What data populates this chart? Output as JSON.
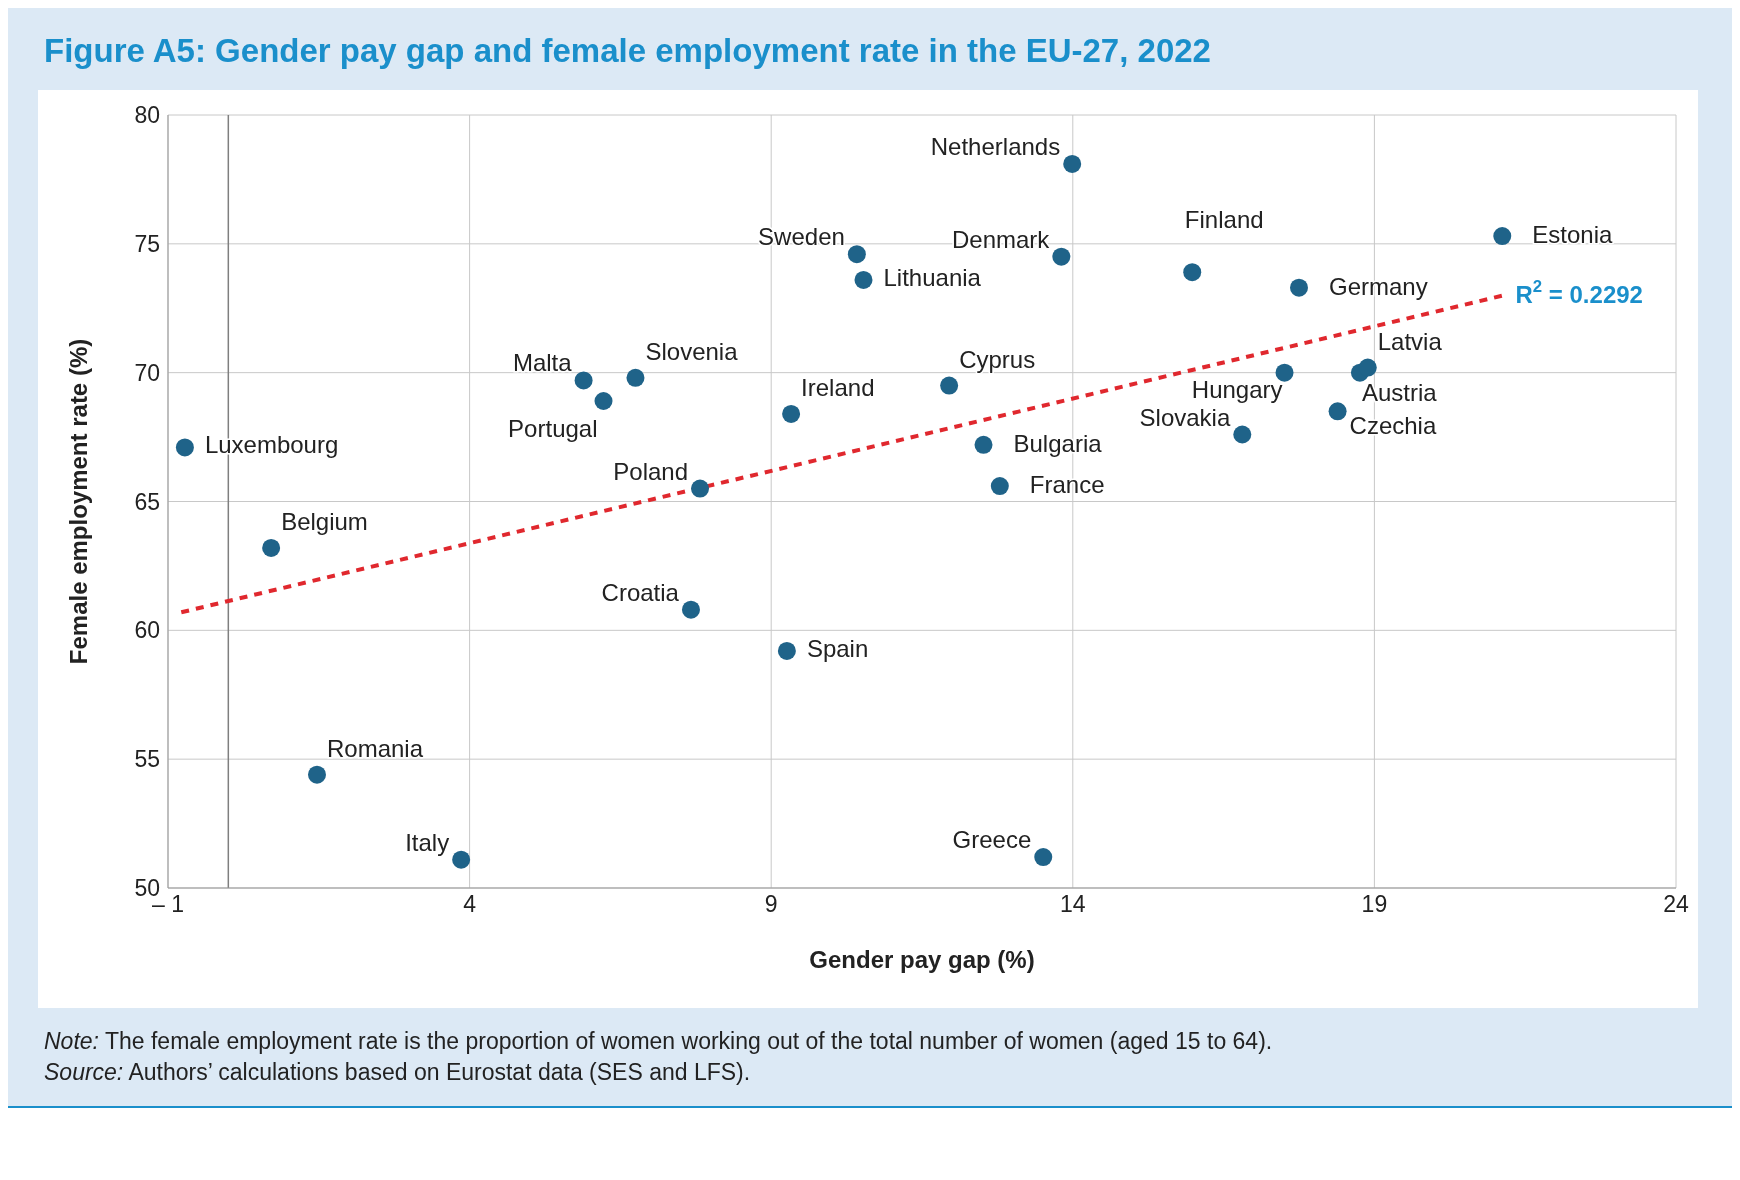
{
  "chart_data": {
    "type": "scatter",
    "title": "Figure A5: Gender pay gap and female employment rate in the EU-27, 2022",
    "xlabel": "Gender pay gap (%)",
    "ylabel": "Female employment rate (%)",
    "xlim": [
      -1,
      24
    ],
    "xticks": [
      {
        "value": -1,
        "label": "– 1"
      },
      4,
      9,
      14,
      19,
      24
    ],
    "ylim": [
      50,
      80
    ],
    "yticks": [
      50,
      55,
      60,
      65,
      70,
      75,
      80
    ],
    "grid": true,
    "marker": "circle",
    "ref_lines": [
      {
        "axis": "x",
        "value": 0,
        "color": "#7f7f7f"
      }
    ],
    "series": [
      {
        "color": "#1f6389",
        "x": [
          -0.72,
          0.71,
          1.47,
          3.86,
          5.89,
          6.22,
          6.75,
          7.82,
          7.67,
          9.26,
          9.33,
          10.42,
          10.53,
          11.95,
          12.52,
          12.79,
          13.51,
          13.81,
          13.99,
          15.98,
          16.81,
          17.51,
          17.75,
          18.39,
          18.76,
          18.89,
          21.12
        ],
        "values": [
          67.1,
          63.2,
          54.4,
          51.1,
          69.7,
          68.9,
          69.8,
          65.5,
          60.8,
          59.2,
          68.4,
          74.6,
          73.6,
          69.5,
          67.2,
          65.6,
          51.2,
          74.5,
          78.1,
          73.9,
          67.6,
          70.0,
          73.3,
          68.5,
          70.0,
          70.2,
          75.3
        ]
      },
      {
        "type": "line",
        "color": "#e0282e",
        "line_style": "dashed",
        "marker": "none",
        "x": [
          -0.78,
          21.14
        ],
        "values": [
          60.7,
          73.0
        ]
      }
    ],
    "annotations": [
      {
        "text": "Luxembourg",
        "x": -0.72,
        "y": 67.1
      },
      {
        "text": "Belgium",
        "x": 0.71,
        "y": 63.2
      },
      {
        "text": "Romania",
        "x": 1.47,
        "y": 54.4
      },
      {
        "text": "Italy",
        "x": 3.86,
        "y": 51.1
      },
      {
        "text": "Malta",
        "x": 5.89,
        "y": 69.7
      },
      {
        "text": "Portugal",
        "x": 6.22,
        "y": 68.9
      },
      {
        "text": "Slovenia",
        "x": 6.75,
        "y": 69.8
      },
      {
        "text": "Poland",
        "x": 7.82,
        "y": 65.5
      },
      {
        "text": "Croatia",
        "x": 7.67,
        "y": 60.8
      },
      {
        "text": "Spain",
        "x": 9.26,
        "y": 59.2
      },
      {
        "text": "Ireland",
        "x": 9.33,
        "y": 68.4
      },
      {
        "text": "Sweden",
        "x": 10.42,
        "y": 74.6
      },
      {
        "text": "Lithuania",
        "x": 10.53,
        "y": 73.6
      },
      {
        "text": "Cyprus",
        "x": 11.95,
        "y": 69.5
      },
      {
        "text": "Bulgaria",
        "x": 12.52,
        "y": 67.2
      },
      {
        "text": "France",
        "x": 12.79,
        "y": 65.6
      },
      {
        "text": "Greece",
        "x": 13.51,
        "y": 51.2
      },
      {
        "text": "Denmark",
        "x": 13.81,
        "y": 74.5
      },
      {
        "text": "Netherlands",
        "x": 13.99,
        "y": 78.1
      },
      {
        "text": "Finland",
        "x": 15.98,
        "y": 73.9
      },
      {
        "text": "Slovakia",
        "x": 16.81,
        "y": 67.6
      },
      {
        "text": "Hungary",
        "x": 17.51,
        "y": 70.0
      },
      {
        "text": "Germany",
        "x": 17.75,
        "y": 73.3
      },
      {
        "text": "Czechia",
        "x": 18.39,
        "y": 68.5
      },
      {
        "text": "Austria",
        "x": 18.76,
        "y": 70.0
      },
      {
        "text": "Latvia",
        "x": 18.89,
        "y": 70.2
      },
      {
        "text": "Estonia",
        "x": 21.12,
        "y": 75.3
      },
      {
        "text": "R$^{2}$ = 0.2292",
        "x": 21.14,
        "y": 73.0
      },
      "Note: The female employment rate is the proportion of women working out of the total number of women (aged 15 to 64).",
      "Source: Authors’ calculations based on Eurostat data (SES and LFS)."
    ]
  }
}
